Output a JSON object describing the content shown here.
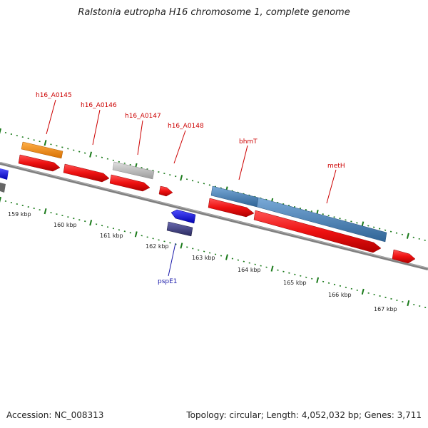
{
  "title": "Ralstonia eutropha H16 chromosome 1, complete genome",
  "footer": {
    "accession": "Accession: NC_008313",
    "topology": "Topology: circular; Length: 4,052,032 bp; Genes: 3,711"
  },
  "colors": {
    "backbone": "#808080",
    "tick": "#1a7a1a",
    "cds": "#ee1111",
    "label_top": "#cc0000",
    "label_bottom": "#1a1aaa",
    "orange": "#f08c1a",
    "grey": "#c0c0c0",
    "steelblue": "#4a82b8",
    "blue": "#1a1ae6",
    "navy": "#3c3c82",
    "darkgrey": "#666666"
  },
  "scale_labels": [
    "159 kbp",
    "160 kbp",
    "161 kbp",
    "162 kbp",
    "163 kbp",
    "164 kbp",
    "165 kbp",
    "166 kbp",
    "167 kbp"
  ],
  "gene_labels": [
    "h16_A0145",
    "h16_A0146",
    "h16_A0147",
    "h16_A0148",
    "bhmT",
    "metH",
    "pspE1"
  ]
}
